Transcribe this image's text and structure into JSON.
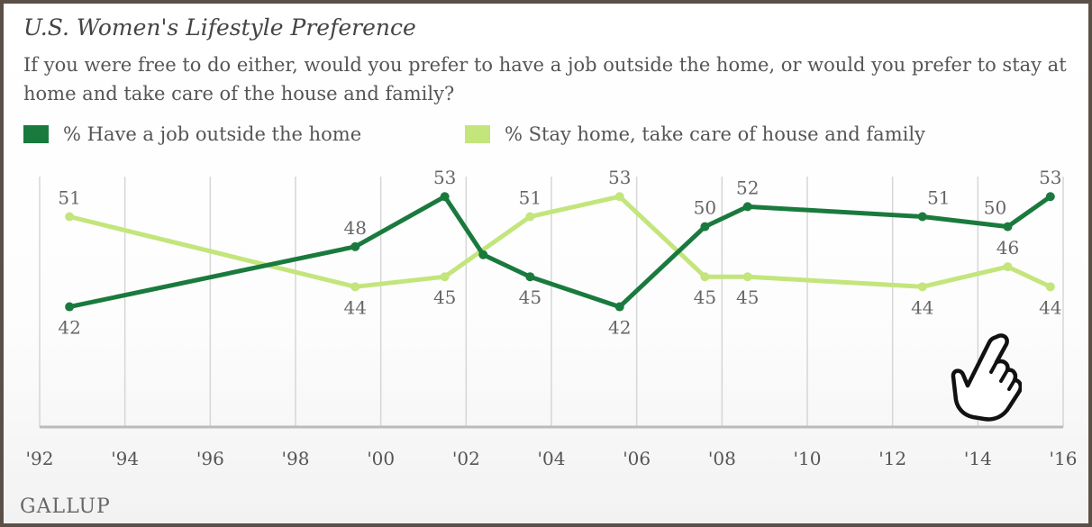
{
  "chart_data": {
    "type": "line",
    "title": "U.S. Women's Lifestyle Preference",
    "subtitle": "If you were free to do either, would you prefer to have a job outside the home, or would you prefer to stay at home and take care of the house and family?",
    "xlabel": "",
    "ylabel": "",
    "xlim": [
      1992,
      2016
    ],
    "ylim": [
      30,
      55
    ],
    "x_ticks": [
      1992,
      1994,
      1996,
      1998,
      2000,
      2002,
      2004,
      2006,
      2008,
      2010,
      2012,
      2014,
      2016
    ],
    "x_tick_labels": [
      "'92",
      "'94",
      "'96",
      "'98",
      "'00",
      "'02",
      "'04",
      "'06",
      "'08",
      "'10",
      "'12",
      "'14",
      "'16"
    ],
    "grid": "vertical",
    "legend_position": "top",
    "series": [
      {
        "name": "% Have a job outside the home",
        "color": "#1a7a3e",
        "x": [
          1992.7,
          1999.4,
          2001.5,
          2002.4,
          2003.5,
          2005.6,
          2007.6,
          2008.6,
          2012.7,
          2014.7,
          2015.7
        ],
        "values": [
          42,
          48,
          53,
          null,
          45,
          42,
          50,
          52,
          51,
          50,
          53
        ],
        "points": [
          {
            "x": 1992.7,
            "y": 42,
            "label": "42"
          },
          {
            "x": 1999.4,
            "y": 48,
            "label": "48"
          },
          {
            "x": 2001.5,
            "y": 53,
            "label": "53"
          },
          {
            "x": 2002.4,
            "y": 47.2,
            "label": ""
          },
          {
            "x": 2003.5,
            "y": 45,
            "label": "45"
          },
          {
            "x": 2005.6,
            "y": 42,
            "label": "42"
          },
          {
            "x": 2007.6,
            "y": 50,
            "label": "50"
          },
          {
            "x": 2008.6,
            "y": 52,
            "label": "52"
          },
          {
            "x": 2012.7,
            "y": 51,
            "label": "51"
          },
          {
            "x": 2014.7,
            "y": 50,
            "label": "50"
          },
          {
            "x": 2015.7,
            "y": 53,
            "label": "53"
          }
        ]
      },
      {
        "name": "% Stay home, take care of house and family",
        "color": "#c3e57c",
        "points": [
          {
            "x": 1992.7,
            "y": 51,
            "label": "51"
          },
          {
            "x": 1999.4,
            "y": 44,
            "label": "44"
          },
          {
            "x": 2001.5,
            "y": 45,
            "label": "45"
          },
          {
            "x": 2003.5,
            "y": 51,
            "label": "51"
          },
          {
            "x": 2005.6,
            "y": 53,
            "label": "53"
          },
          {
            "x": 2007.6,
            "y": 45,
            "label": "45"
          },
          {
            "x": 2008.6,
            "y": 45,
            "label": "45"
          },
          {
            "x": 2012.7,
            "y": 44,
            "label": "44"
          },
          {
            "x": 2014.7,
            "y": 46,
            "label": "46"
          },
          {
            "x": 2015.7,
            "y": 44,
            "label": "44"
          }
        ]
      }
    ]
  },
  "source_logo": "GALLUP",
  "colors": {
    "job": "#1a7a3e",
    "home": "#c3e57c",
    "grid": "#d6d6d6",
    "axis": "#bbbbbb"
  },
  "icons": {
    "cursor": "pointing-hand-icon"
  }
}
